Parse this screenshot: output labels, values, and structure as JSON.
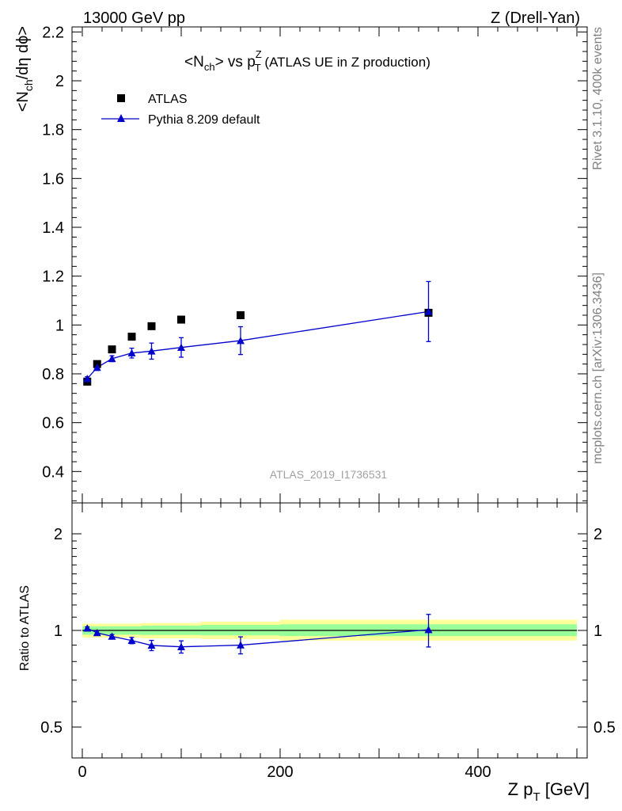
{
  "header": {
    "left": "13000 GeV pp",
    "right": "Z (Drell-Yan)"
  },
  "side_labels": {
    "rivet": "Rivet 3.1.10,  400k events",
    "mcplots": "mcplots.cern.ch [arXiv:1306.3436]"
  },
  "chart_data": [
    {
      "type": "scatter",
      "title": {
        "prefix": "<N",
        "prefix_sub": "ch",
        "middle": "> vs p",
        "p_sup": "Z",
        "p_sub": "T",
        "suffix": " (ATLAS UE in Z production)"
      },
      "ylabel": {
        "a": "<N",
        "a_sub": "ch",
        "b": "/dη dϕ>"
      },
      "watermark": "ATLAS_2019_I1736531",
      "xlim": [
        0,
        500
      ],
      "ylim": [
        0.27,
        2.22
      ],
      "ytick_values": [
        0.4,
        0.6,
        0.8,
        1.0,
        1.2,
        1.4,
        1.6,
        1.8,
        2.0,
        2.2
      ],
      "ytick_labels": [
        "0.4",
        "0.6",
        "0.8",
        "1",
        "1.2",
        "1.4",
        "1.6",
        "1.8",
        "2",
        "2.2"
      ],
      "legend_position": "top-left",
      "series": [
        {
          "name": "ATLAS",
          "marker": "square",
          "color": "#000000",
          "x": [
            5,
            15,
            30,
            50,
            70,
            100,
            160,
            350
          ],
          "y": [
            0.768,
            0.84,
            0.9,
            0.952,
            0.995,
            1.022,
            1.04,
            1.05
          ]
        },
        {
          "name": "Pythia 8.209 default",
          "marker": "triangle",
          "color": "#0000cc",
          "x": [
            5,
            15,
            30,
            50,
            70,
            100,
            160,
            350
          ],
          "y": [
            0.78,
            0.826,
            0.862,
            0.885,
            0.893,
            0.908,
            0.936,
            1.055
          ],
          "yerr": [
            0.008,
            0.012,
            0.012,
            0.02,
            0.033,
            0.04,
            0.057,
            0.123
          ]
        }
      ]
    },
    {
      "type": "scatter",
      "ylabel": "Ratio to ATLAS",
      "xlabel": {
        "a": "Z p",
        "a_sub": "T",
        "b": " [GeV]"
      },
      "xlim": [
        0,
        500
      ],
      "ylim_log": [
        0.4,
        2.5
      ],
      "xtick_values": [
        0,
        200,
        400
      ],
      "xtick_labels": [
        "0",
        "200",
        "400"
      ],
      "ytick_values": [
        0.5,
        1,
        2
      ],
      "ytick_labels": [
        "0.5",
        "1",
        "2"
      ],
      "bands": [
        {
          "x": [
            0,
            20
          ],
          "green": [
            0.97,
            1.03
          ],
          "yellow": [
            0.95,
            1.05
          ]
        },
        {
          "x": [
            20,
            60
          ],
          "green": [
            0.97,
            1.03
          ],
          "yellow": [
            0.95,
            1.05
          ]
        },
        {
          "x": [
            60,
            120
          ],
          "green": [
            0.968,
            1.035
          ],
          "yellow": [
            0.945,
            1.055
          ]
        },
        {
          "x": [
            120,
            200
          ],
          "green": [
            0.965,
            1.04
          ],
          "yellow": [
            0.94,
            1.065
          ]
        },
        {
          "x": [
            200,
            500
          ],
          "green": [
            0.96,
            1.045
          ],
          "yellow": [
            0.93,
            1.08
          ]
        }
      ],
      "series": [
        {
          "name": "Pythia 8.209 default",
          "marker": "triangle",
          "color": "#0000cc",
          "x": [
            5,
            15,
            30,
            50,
            70,
            100,
            160,
            350
          ],
          "y": [
            1.016,
            0.983,
            0.958,
            0.93,
            0.898,
            0.889,
            0.9,
            1.005
          ],
          "yerr": [
            0.01,
            0.014,
            0.013,
            0.021,
            0.033,
            0.039,
            0.055,
            0.117
          ]
        }
      ]
    }
  ]
}
